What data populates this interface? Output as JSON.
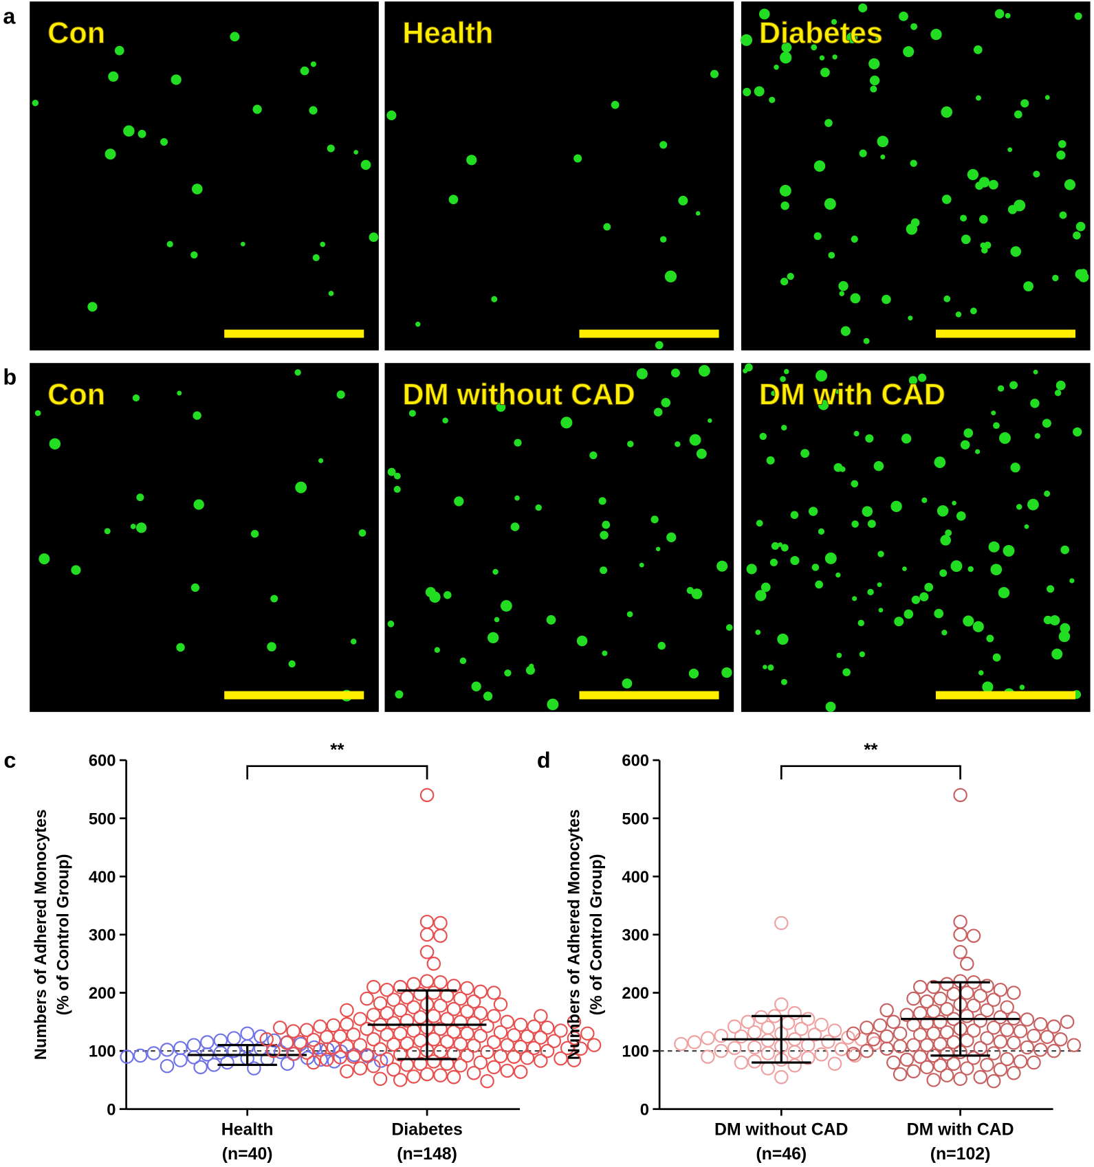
{
  "micrographs": {
    "label_a": "a",
    "label_b": "b",
    "rows": [
      [
        "Con",
        "Health",
        "Diabetes"
      ],
      [
        "Con",
        "DM without CAD",
        "DM with CAD"
      ]
    ]
  },
  "chart_data": [
    {
      "type": "dotplot",
      "panel_label": "c",
      "ylabel": [
        "Numbers of Adhered Monocytes",
        "(% of Control Group)"
      ],
      "categories": [
        "Health",
        "Diabetes"
      ],
      "category_notes": [
        "(n=40)",
        "(n=148)"
      ],
      "ylim": [
        0,
        600
      ],
      "yticks": [
        0,
        100,
        200,
        300,
        400,
        500,
        600
      ],
      "reference_line": 100,
      "annotation": "**",
      "groups": [
        {
          "color": "#6f73e8",
          "mean": 93,
          "sd": 17,
          "values": [
            130,
            125,
            122,
            118,
            118,
            115,
            115,
            112,
            110,
            108,
            106,
            105,
            104,
            103,
            102,
            100,
            99,
            98,
            97,
            96,
            95,
            94,
            93,
            92,
            91,
            90,
            89,
            88,
            87,
            86,
            85,
            84,
            83,
            82,
            80,
            78,
            76,
            74,
            72,
            70
          ]
        },
        {
          "color": "#e85050",
          "mean": 145,
          "sd": 59,
          "values": [
            540,
            322,
            320,
            300,
            298,
            270,
            250,
            220,
            218,
            215,
            212,
            210,
            208,
            205,
            202,
            200,
            198,
            195,
            192,
            190,
            188,
            185,
            182,
            180,
            178,
            175,
            172,
            170,
            168,
            165,
            165,
            162,
            160,
            160,
            158,
            155,
            155,
            152,
            150,
            150,
            148,
            148,
            146,
            145,
            145,
            144,
            143,
            142,
            142,
            140,
            140,
            138,
            138,
            136,
            135,
            135,
            134,
            133,
            132,
            130,
            130,
            128,
            128,
            127,
            126,
            125,
            125,
            124,
            123,
            122,
            120,
            120,
            119,
            118,
            117,
            116,
            115,
            115,
            114,
            113,
            112,
            111,
            110,
            110,
            109,
            108,
            107,
            106,
            105,
            105,
            104,
            103,
            102,
            101,
            100,
            100,
            99,
            98,
            97,
            96,
            95,
            95,
            94,
            93,
            92,
            91,
            90,
            90,
            89,
            88,
            87,
            86,
            85,
            84,
            83,
            82,
            80,
            80,
            78,
            78,
            76,
            75,
            74,
            72,
            70,
            68,
            66,
            65,
            64,
            62,
            60,
            58,
            56,
            55,
            52,
            50,
            48,
            210,
            200,
            190,
            180,
            170,
            160,
            150,
            140,
            130,
            120,
            110
          ]
        }
      ]
    },
    {
      "type": "dotplot",
      "panel_label": "d",
      "ylabel": [
        "Numbers of Adhered Monocytes",
        "(% of Control Group)"
      ],
      "categories": [
        "DM without CAD",
        "DM with CAD"
      ],
      "category_notes": [
        "(n=46)",
        "(n=102)"
      ],
      "ylim": [
        0,
        600
      ],
      "yticks": [
        0,
        100,
        200,
        300,
        400,
        500,
        600
      ],
      "reference_line": 100,
      "annotation": "**",
      "groups": [
        {
          "color": "#f0a0a0",
          "mean": 120,
          "sd": 40,
          "values": [
            320,
            180,
            165,
            160,
            158,
            155,
            150,
            148,
            145,
            142,
            140,
            138,
            135,
            132,
            130,
            128,
            126,
            125,
            123,
            122,
            120,
            120,
            118,
            116,
            115,
            113,
            112,
            110,
            108,
            106,
            105,
            103,
            100,
            98,
            96,
            94,
            92,
            90,
            88,
            85,
            82,
            80,
            78,
            75,
            70,
            55
          ]
        },
        {
          "color": "#c86060",
          "mean": 155,
          "sd": 63,
          "values": [
            540,
            322,
            300,
            298,
            270,
            250,
            220,
            218,
            215,
            212,
            210,
            205,
            200,
            198,
            195,
            190,
            188,
            185,
            180,
            178,
            175,
            172,
            170,
            168,
            165,
            162,
            160,
            158,
            156,
            155,
            154,
            152,
            150,
            150,
            148,
            146,
            145,
            144,
            142,
            140,
            140,
            138,
            136,
            135,
            134,
            132,
            130,
            130,
            128,
            126,
            125,
            124,
            122,
            120,
            120,
            118,
            116,
            115,
            114,
            112,
            110,
            110,
            108,
            106,
            105,
            104,
            102,
            100,
            100,
            98,
            96,
            95,
            92,
            90,
            88,
            86,
            85,
            82,
            80,
            78,
            76,
            75,
            72,
            70,
            68,
            65,
            62,
            60,
            58,
            55,
            52,
            50,
            48,
            210,
            190,
            170,
            150,
            130,
            110,
            95,
            80,
            200
          ]
        }
      ]
    }
  ]
}
